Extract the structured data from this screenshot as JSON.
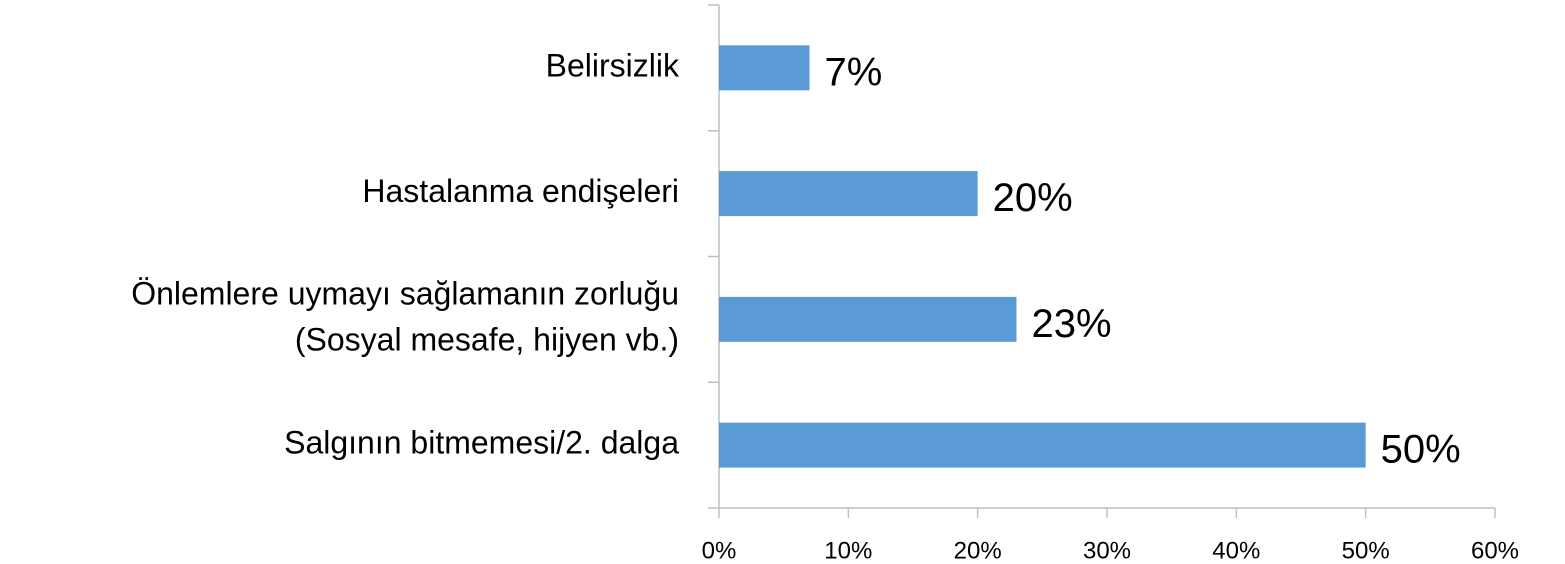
{
  "chart_data": {
    "type": "barh",
    "categories": [
      "Belirsizlik",
      "Hastalanma endişeleri",
      "Önlemlere uymayı sağlamanın zorluğu\n(Sosyal mesafe, hijyen vb.)",
      "Salgının bitmemesi/2. dalga"
    ],
    "values": [
      7,
      20,
      23,
      50
    ],
    "value_labels": [
      "7%",
      "20%",
      "23%",
      "50%"
    ],
    "color": "#5b9bd5",
    "xlim": [
      0,
      60
    ],
    "xticks": [
      {
        "value": 0,
        "label": "0%"
      },
      {
        "value": 10,
        "label": "10%"
      },
      {
        "value": 20,
        "label": "20%"
      },
      {
        "value": 30,
        "label": "30%"
      },
      {
        "value": 40,
        "label": "40%"
      },
      {
        "value": 50,
        "label": "50%"
      },
      {
        "value": 60,
        "label": "60%"
      }
    ],
    "grid": false
  }
}
